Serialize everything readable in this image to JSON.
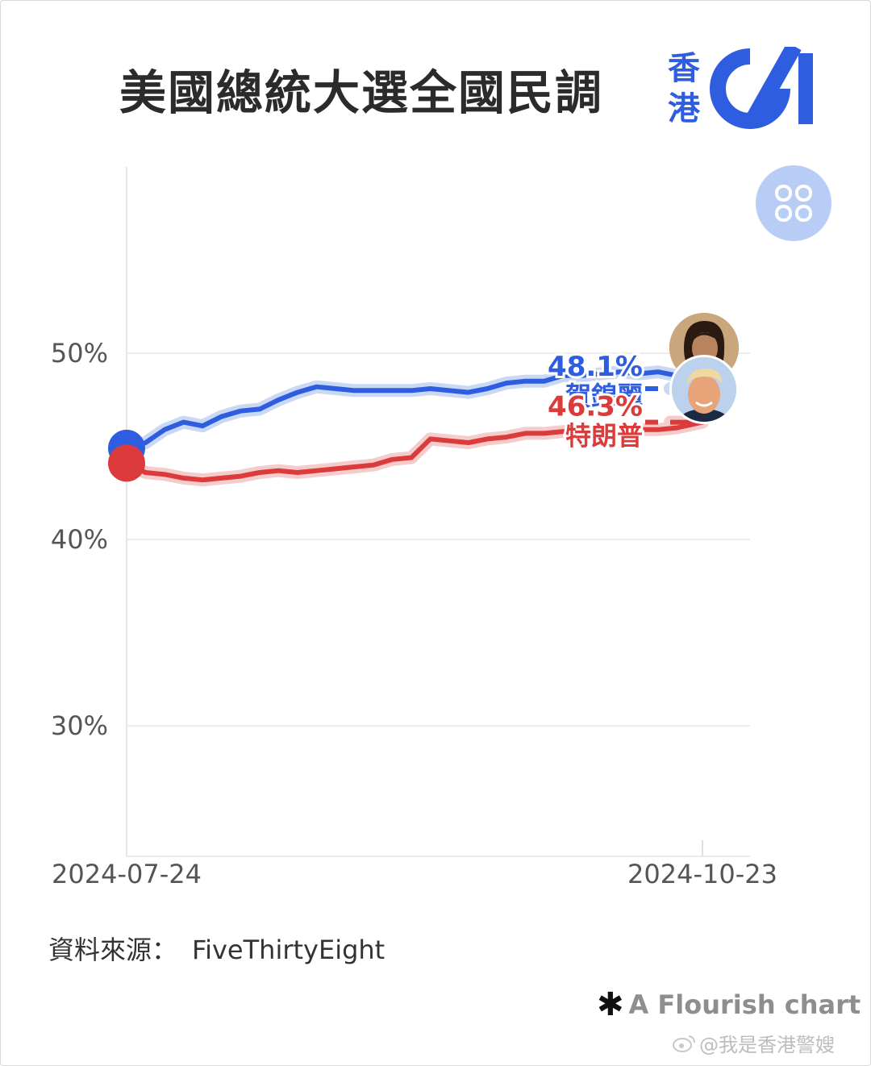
{
  "header": {
    "title": "美國總統大選全國民調",
    "logo_chars": [
      "香",
      "港"
    ]
  },
  "chart_data": {
    "type": "line",
    "title": "美國總統大選全國民調",
    "x_labels": [
      "2024-07-24",
      "2024-10-23"
    ],
    "x_range": [
      "2024-07-24",
      "2024-10-23"
    ],
    "y_ticks": [
      "50%",
      "40%",
      "30%"
    ],
    "y_tick_values": [
      50,
      40,
      30
    ],
    "ylim": [
      23,
      60
    ],
    "grid": true,
    "series": [
      {
        "name": "賀錦麗",
        "end_label": "48.1%",
        "color": "#2f5de0",
        "halo": "#c9d8f5",
        "x": [
          "2024-07-24",
          "2024-07-27",
          "2024-07-30",
          "2024-08-02",
          "2024-08-05",
          "2024-08-08",
          "2024-08-11",
          "2024-08-14",
          "2024-08-17",
          "2024-08-20",
          "2024-08-23",
          "2024-08-26",
          "2024-08-29",
          "2024-09-01",
          "2024-09-04",
          "2024-09-07",
          "2024-09-10",
          "2024-09-13",
          "2024-09-16",
          "2024-09-19",
          "2024-09-22",
          "2024-09-25",
          "2024-09-28",
          "2024-10-01",
          "2024-10-04",
          "2024-10-07",
          "2024-10-10",
          "2024-10-13",
          "2024-10-16",
          "2024-10-19",
          "2024-10-23"
        ],
        "y": [
          44.9,
          45.2,
          45.9,
          46.3,
          46.1,
          46.6,
          46.9,
          47.0,
          47.5,
          47.9,
          48.2,
          48.1,
          48.0,
          48.0,
          48.0,
          48.0,
          48.1,
          48.0,
          47.9,
          48.1,
          48.4,
          48.5,
          48.5,
          48.8,
          48.8,
          48.9,
          49.0,
          48.9,
          49.0,
          48.8,
          48.1
        ]
      },
      {
        "name": "特朗普",
        "end_label": "46.3%",
        "color": "#db3b3b",
        "halo": "#f5cccc",
        "x": [
          "2024-07-24",
          "2024-07-27",
          "2024-07-30",
          "2024-08-02",
          "2024-08-05",
          "2024-08-08",
          "2024-08-11",
          "2024-08-14",
          "2024-08-17",
          "2024-08-20",
          "2024-08-23",
          "2024-08-26",
          "2024-08-29",
          "2024-09-01",
          "2024-09-04",
          "2024-09-07",
          "2024-09-10",
          "2024-09-13",
          "2024-09-16",
          "2024-09-19",
          "2024-09-22",
          "2024-09-25",
          "2024-09-28",
          "2024-10-01",
          "2024-10-04",
          "2024-10-07",
          "2024-10-10",
          "2024-10-13",
          "2024-10-16",
          "2024-10-19",
          "2024-10-23"
        ],
        "y": [
          44.1,
          43.6,
          43.5,
          43.3,
          43.2,
          43.3,
          43.4,
          43.6,
          43.7,
          43.6,
          43.7,
          43.8,
          43.9,
          44.0,
          44.3,
          44.4,
          45.4,
          45.3,
          45.2,
          45.4,
          45.5,
          45.7,
          45.7,
          45.8,
          45.8,
          45.8,
          45.9,
          45.9,
          45.9,
          46.0,
          46.3
        ]
      }
    ]
  },
  "footer": {
    "source_label": "資料來源：",
    "source_name": "FiveThirtyEight",
    "credit": "A Flourish chart",
    "watermark": "@我是香港警嫂"
  },
  "icons": {
    "menu_button": "grid-icon",
    "credit": "flourish-asterisk-icon",
    "watermark": "weibo-icon"
  },
  "colors": {
    "harris": "#2f5de0",
    "trump": "#db3b3b",
    "logo": "#2f5de0",
    "fab": "#b7cdf6"
  }
}
